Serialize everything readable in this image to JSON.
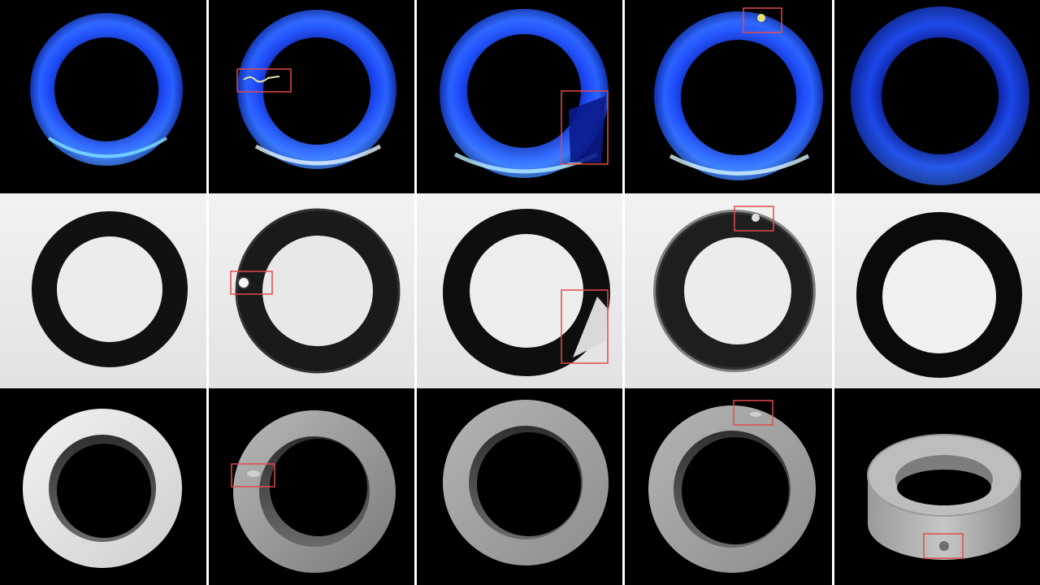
{
  "grid": {
    "rows": [
      {
        "name": "blue-color-row",
        "background": "#000000",
        "cells": [
          {
            "variant": "blue-ring",
            "defect": null
          },
          {
            "variant": "blue-ring",
            "defect": "inner-debris"
          },
          {
            "variant": "blue-ring",
            "defect": "edge-shadow"
          },
          {
            "variant": "blue-ring",
            "defect": "top-particle"
          },
          {
            "variant": "blue-ring-dark",
            "defect": null
          }
        ]
      },
      {
        "name": "grayscale-backlit-row",
        "background": "#ececec",
        "cells": [
          {
            "variant": "dark-ring",
            "defect": null
          },
          {
            "variant": "dark-ring",
            "defect": "inner-debris"
          },
          {
            "variant": "dark-ring",
            "defect": "edge-chip"
          },
          {
            "variant": "dark-ring",
            "defect": "top-particle"
          },
          {
            "variant": "dark-ring",
            "defect": null
          }
        ]
      },
      {
        "name": "3d-render-row",
        "background": "#000000",
        "cells": [
          {
            "variant": "white-3d-ring",
            "defect": null
          },
          {
            "variant": "gray-3d-ring",
            "defect": "inner-dent"
          },
          {
            "variant": "gray-3d-ring",
            "defect": null
          },
          {
            "variant": "gray-3d-ring",
            "defect": "top-dent"
          },
          {
            "variant": "perspective-3d-ring",
            "defect": "side-dent"
          }
        ]
      }
    ]
  },
  "colors": {
    "divider": "#ffffff",
    "defect_box": "#e34a4a",
    "ring_blue": "#1f4fff",
    "ring_blue_highlight": "#6ad4ff",
    "ring_dark": "#111111",
    "backlit_bg": "#ececec",
    "render_light": "#e6e6e6",
    "render_gray": "#a9a9a9"
  }
}
